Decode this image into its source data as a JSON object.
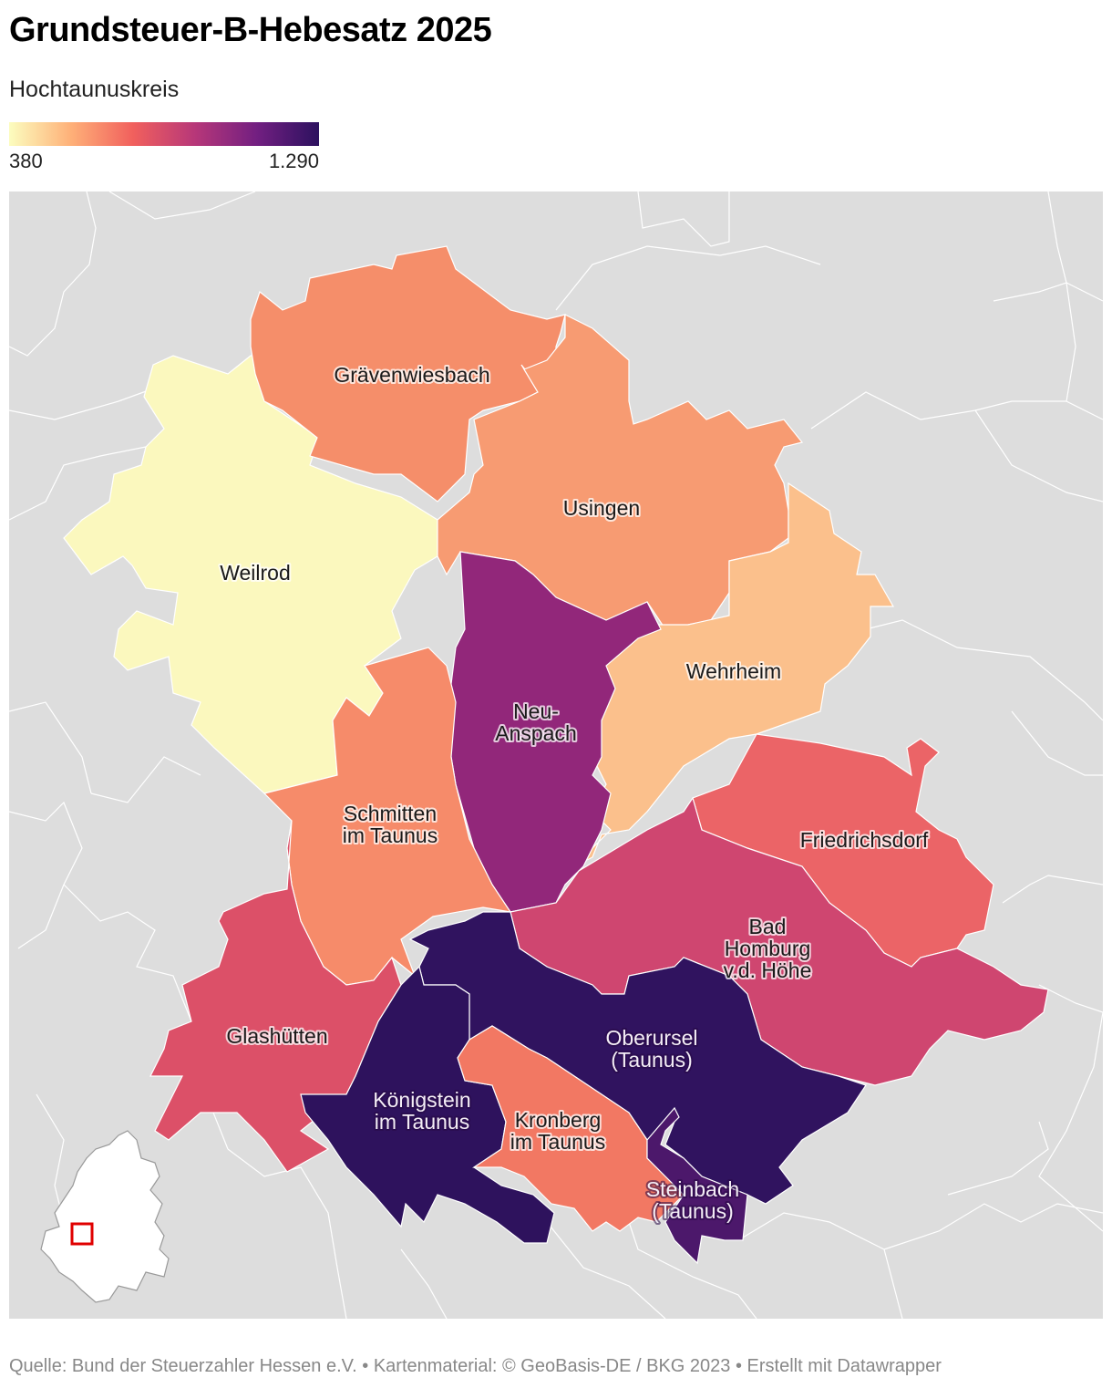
{
  "title": "Grundsteuer-B-Hebesatz 2025",
  "subtitle": "Hochtaunuskreis",
  "legend": {
    "min_label": "380",
    "max_label": "1.290",
    "gradient": [
      "#fcfdbf",
      "#feb078",
      "#f1605d",
      "#b73779",
      "#721f81",
      "#2c115f"
    ]
  },
  "map": {
    "background_color": "#dddddd",
    "boundary_color": "#ffffff",
    "regions": [
      {
        "name": "Weilrod",
        "label_lines": [
          "Weilrod"
        ],
        "color": "#fbf8be"
      },
      {
        "name": "Grävenwiesbach",
        "label_lines": [
          "Grävenwiesbach"
        ],
        "color": "#f58e6a"
      },
      {
        "name": "Usingen",
        "label_lines": [
          "Usingen"
        ],
        "color": "#f79b72"
      },
      {
        "name": "Wehrheim",
        "label_lines": [
          "Wehrheim"
        ],
        "color": "#fbc08c"
      },
      {
        "name": "Neu-Anspach",
        "label_lines": [
          "Neu-",
          "Anspach"
        ],
        "color": "#92277a"
      },
      {
        "name": "Schmitten im Taunus",
        "label_lines": [
          "Schmitten",
          "im Taunus"
        ],
        "color": "#f68b6a"
      },
      {
        "name": "Friedrichsdorf",
        "label_lines": [
          "Friedrichsdorf"
        ],
        "color": "#eb6467"
      },
      {
        "name": "Bad Homburg v.d. Höhe",
        "label_lines": [
          "Bad",
          "Homburg",
          "v.d. Höhe"
        ],
        "color": "#cf4670"
      },
      {
        "name": "Glashütten",
        "label_lines": [
          "Glashütten"
        ],
        "color": "#dc5068"
      },
      {
        "name": "Oberursel (Taunus)",
        "label_lines": [
          "Oberursel",
          "(Taunus)"
        ],
        "color": "#30135f"
      },
      {
        "name": "Königstein im Taunus",
        "label_lines": [
          "Königstein",
          "im Taunus"
        ],
        "color": "#2e125d"
      },
      {
        "name": "Kronberg im Taunus",
        "label_lines": [
          "Kronberg",
          "im Taunus"
        ],
        "color": "#f27863"
      },
      {
        "name": "Steinbach (Taunus)",
        "label_lines": [
          "Steinbach",
          "(Taunus)"
        ],
        "color": "#4c186b"
      }
    ],
    "locator": {
      "fill": "#ffffff",
      "stroke": "#999999",
      "marker_color": "#e00000"
    }
  },
  "footer": {
    "text": "Quelle: Bund der Steuerzahler Hessen e.V. • Kartenmaterial: © GeoBasis-DE / BKG 2023  • Erstellt mit Datawrapper"
  }
}
